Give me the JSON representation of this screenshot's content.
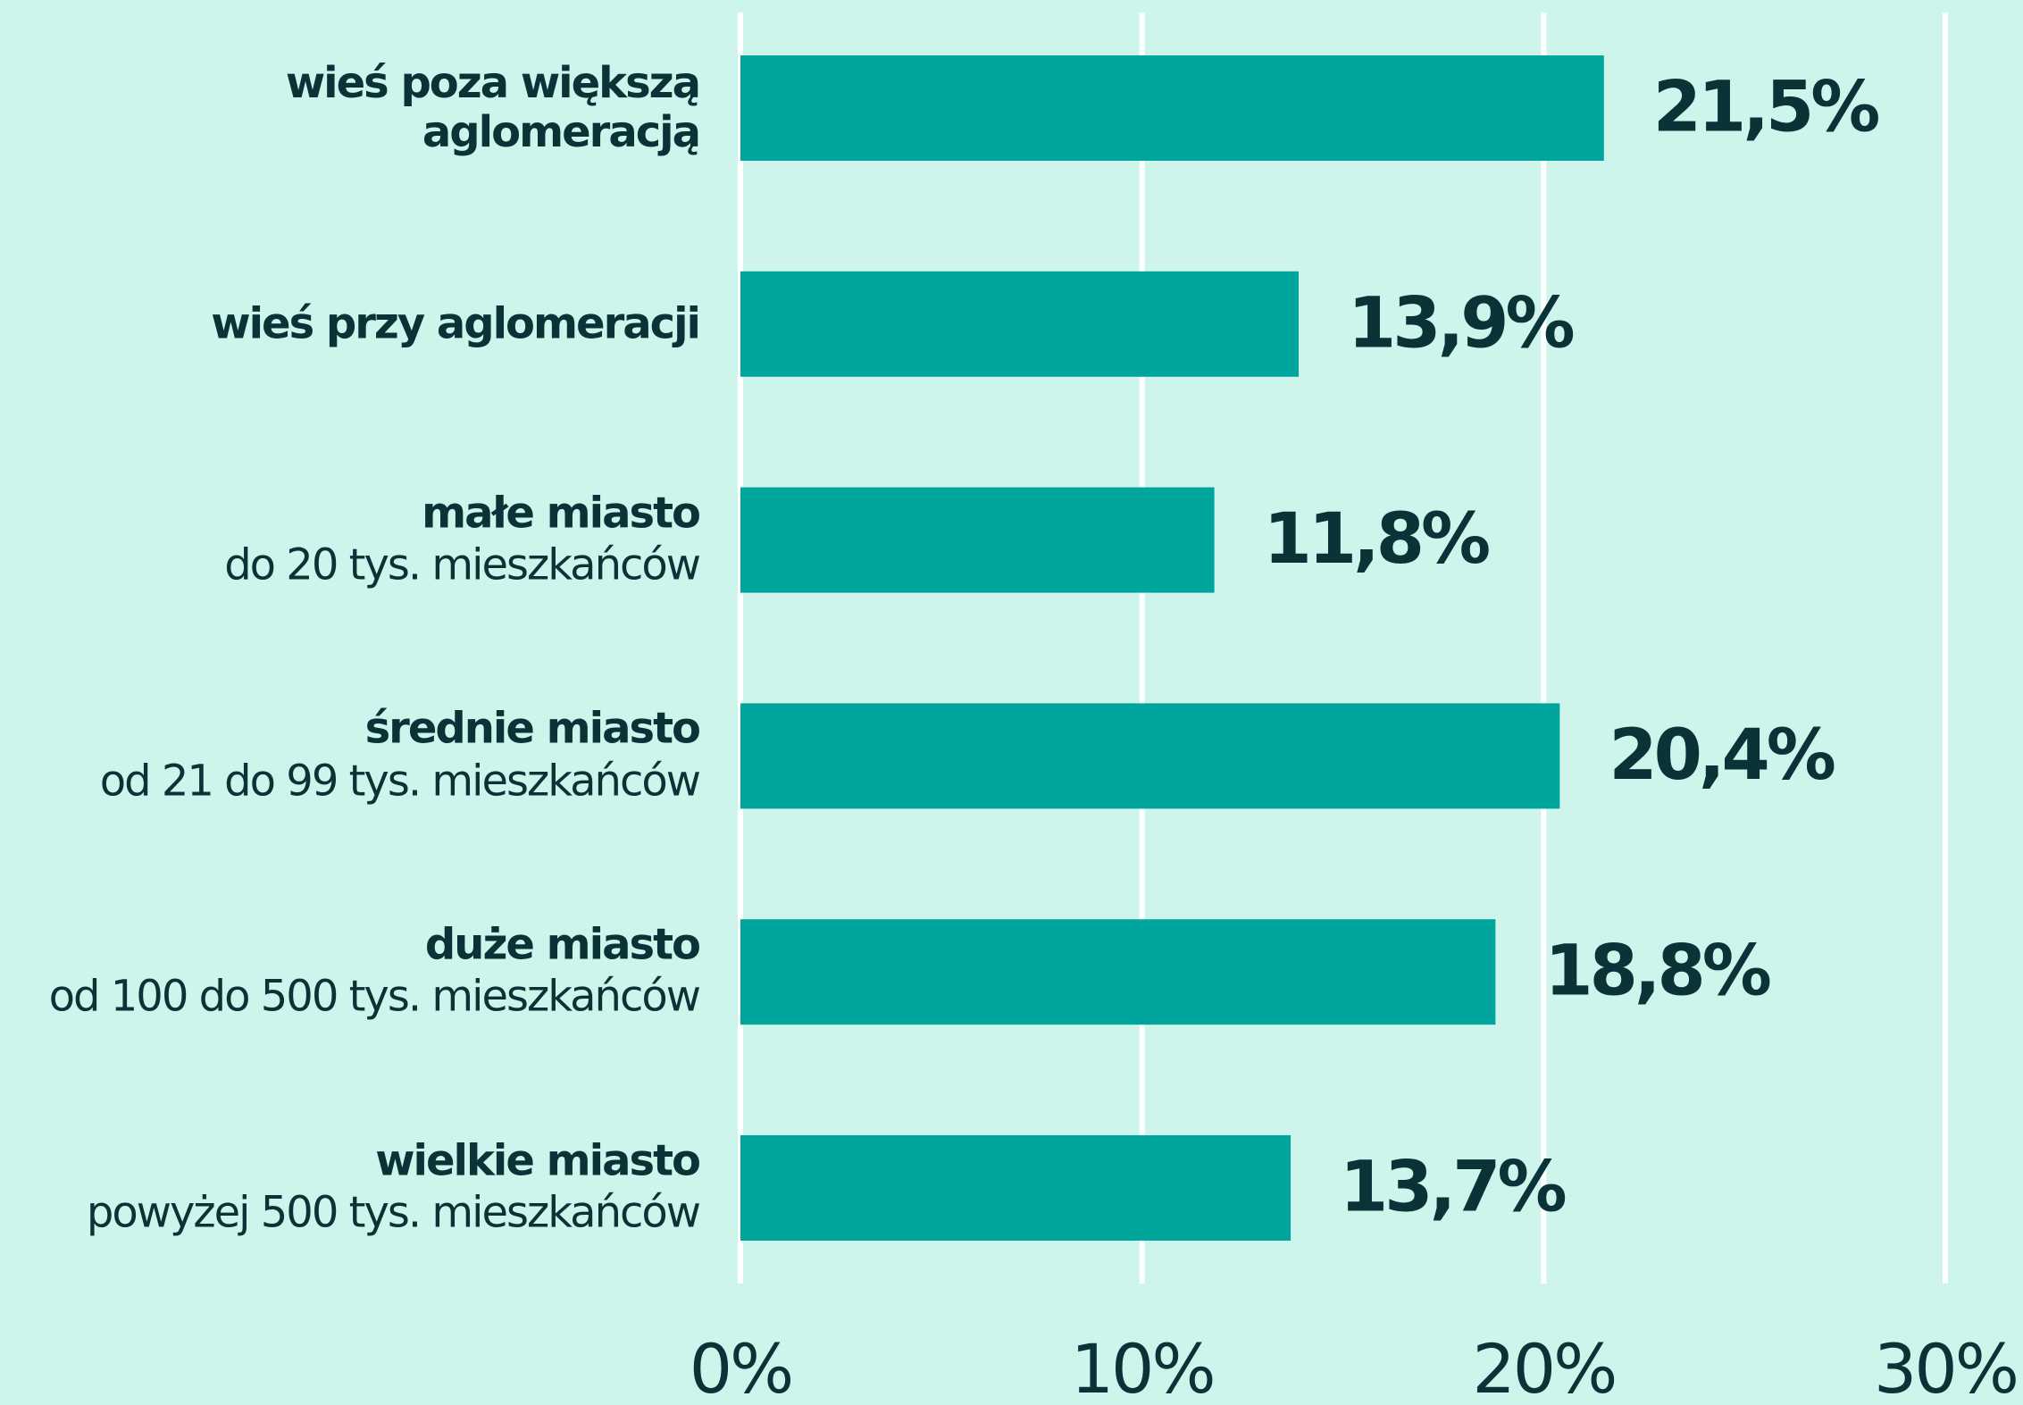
{
  "chart_data": {
    "type": "hbar",
    "categories": [
      "wieś poza większą aglomeracją",
      "wieś przy aglomeracji",
      "małe miasto",
      "średnie miasto",
      "duże miasto",
      "wielkie miasto"
    ],
    "category_notes": [
      null,
      null,
      "do 20 tys. mieszkańców",
      "od 21 do 99 tys. mieszkańców",
      "od 100 do 500 tys. mieszkańców",
      "powyżej 500 tys. mieszkańców"
    ],
    "values": [
      21.5,
      13.9,
      11.8,
      20.4,
      18.8,
      13.7
    ],
    "value_labels": [
      "21,5%",
      "13,9%",
      "11,8%",
      "20,4%",
      "18,8%",
      "13,7%"
    ],
    "color": "#00a59d",
    "xlim": [
      0,
      30
    ],
    "xticks": [
      {
        "value": 0,
        "label": "0%"
      },
      {
        "value": 10,
        "label": "10%"
      },
      {
        "value": 20,
        "label": "20%"
      },
      {
        "value": 30,
        "label": "30%"
      }
    ],
    "grid": true
  }
}
